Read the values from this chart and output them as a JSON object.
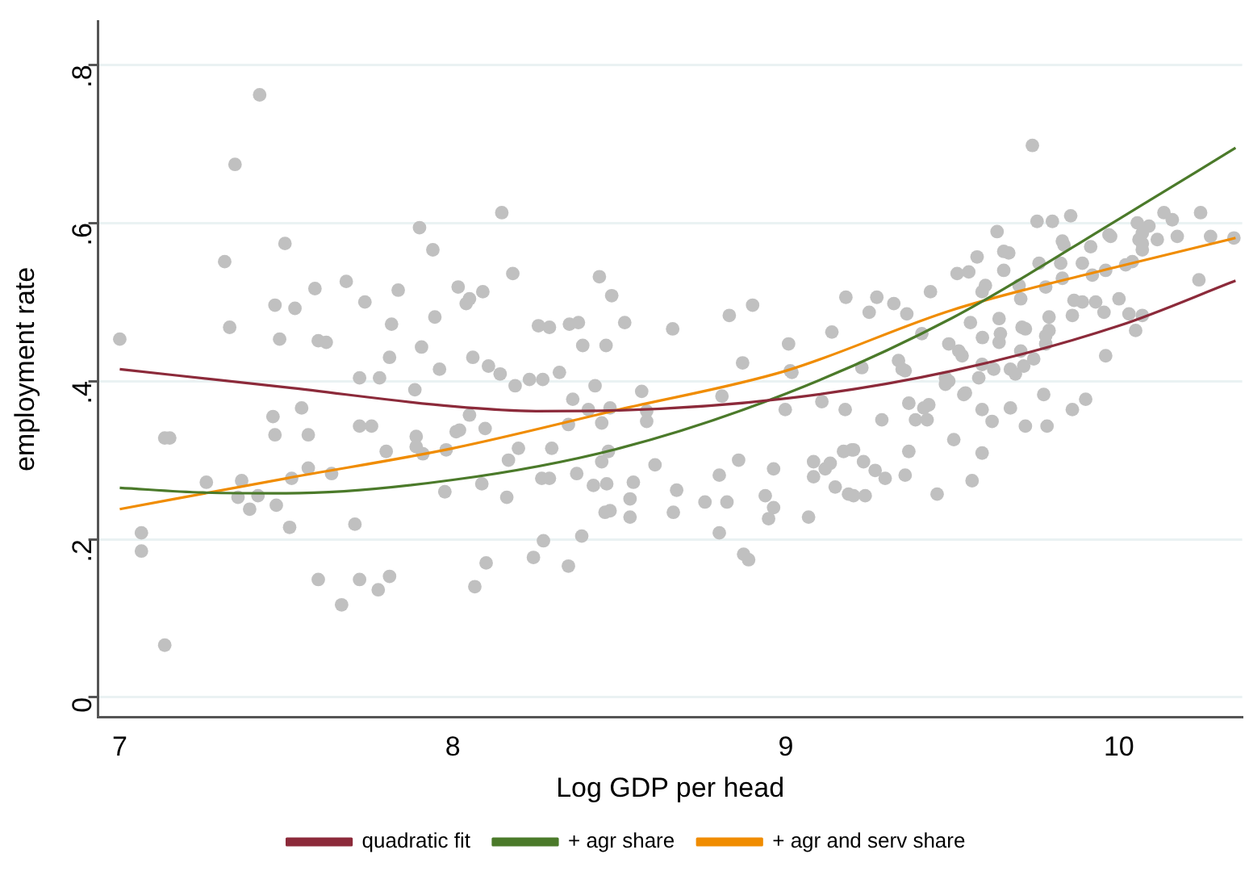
{
  "chart_data": {
    "type": "scatter",
    "xlabel": "Log GDP per head",
    "ylabel": "employment rate",
    "xlim": [
      6.935,
      10.37
    ],
    "ylim": [
      -0.025,
      0.855
    ],
    "xticks": [
      7,
      8,
      9,
      10
    ],
    "yticks": [
      0,
      {
        "value": 0.2,
        "label": ".2"
      },
      {
        "value": 0.4,
        "label": ".4"
      },
      {
        "value": 0.6,
        "label": ".6"
      },
      {
        "value": 0.8,
        "label": ".8"
      }
    ],
    "grid": "y",
    "legend": "bottom",
    "series": [
      {
        "color": "#c0c0c0",
        "marker": "circle",
        "x": [
          7.0,
          7.065,
          7.065,
          7.135,
          7.15,
          7.135,
          7.26,
          7.366,
          7.355,
          7.415,
          7.39,
          7.47,
          7.51,
          7.46,
          7.466,
          7.546,
          7.566,
          7.516,
          7.566,
          7.636,
          7.596,
          7.666,
          7.72,
          7.776,
          7.81,
          7.706,
          7.72,
          7.756,
          7.8,
          7.72,
          7.78,
          7.886,
          7.89,
          7.89,
          7.91,
          7.976,
          7.98,
          8.01,
          8.02,
          8.05,
          8.066,
          8.1,
          7.96,
          8.087,
          7.42,
          7.346,
          7.496,
          7.315,
          7.33,
          7.466,
          7.526,
          7.48,
          7.586,
          7.596,
          7.62,
          7.68,
          7.736,
          7.836,
          7.816,
          7.81,
          7.9,
          7.94,
          7.906,
          7.946,
          8.016,
          8.05,
          8.04,
          8.09,
          8.06,
          8.147,
          8.18,
          8.44,
          8.477,
          8.516,
          8.257,
          8.29,
          8.35,
          8.377,
          8.39,
          8.46,
          8.107,
          8.142,
          8.23,
          8.27,
          8.32,
          8.66,
          8.83,
          8.9,
          8.87,
          9.008,
          9.013,
          9.138,
          9.18,
          9.25,
          9.228,
          8.187,
          8.427,
          8.36,
          8.407,
          8.447,
          8.472,
          8.567,
          8.582,
          8.582,
          8.347,
          8.297,
          8.197,
          8.167,
          8.097,
          8.162,
          8.267,
          8.29,
          8.372,
          8.422,
          8.462,
          8.447,
          8.467,
          8.542,
          8.532,
          8.457,
          8.472,
          8.532,
          8.387,
          8.272,
          8.242,
          8.347,
          8.607,
          8.672,
          8.662,
          8.757,
          8.8,
          8.823,
          8.8,
          8.858,
          8.873,
          8.888,
          8.938,
          8.963,
          8.948,
          8.963,
          8.998,
          9.018,
          9.068,
          9.083,
          9.083,
          9.108,
          9.133,
          9.118,
          9.148,
          9.178,
          9.173,
          9.198,
          9.188,
          9.233,
          9.238,
          8.808,
          9.74,
          9.754,
          9.8,
          9.855,
          9.634,
          9.654,
          9.669,
          9.574,
          9.654,
          9.514,
          9.549,
          9.434,
          9.273,
          9.324,
          9.363,
          9.599,
          9.589,
          9.83,
          9.835,
          9.76,
          9.825,
          9.89,
          9.915,
          9.97,
          9.975,
          9.92,
          9.96,
          10.02,
          10.04,
          10.055,
          10.09,
          10.07,
          10.06,
          10.07,
          10.07,
          10.115,
          10.135,
          10.16,
          10.175,
          10.245,
          10.275,
          10.345,
          10.24,
          9.7,
          9.705,
          9.78,
          9.83,
          9.89,
          9.865,
          9.86,
          9.93,
          9.955,
          10.0,
          10.03,
          10.05,
          10.07,
          9.96,
          9.64,
          9.644,
          9.709,
          9.719,
          9.79,
          9.78,
          9.79,
          9.554,
          9.59,
          9.64,
          9.705,
          9.78,
          9.489,
          9.519,
          9.529,
          9.408,
          9.338,
          9.358,
          9.589,
          9.624,
          9.674,
          9.689,
          9.714,
          9.744,
          9.479,
          9.579,
          9.349,
          9.479,
          9.489,
          9.539,
          9.534,
          9.369,
          9.429,
          9.414,
          9.424,
          9.389,
          9.288,
          9.589,
          9.619,
          9.674,
          9.774,
          9.719,
          9.784,
          9.86,
          9.9,
          9.504,
          9.369,
          9.589,
          9.203,
          9.268,
          9.298,
          9.358,
          9.559,
          9.203,
          9.454
        ],
        "values": [
          0.453,
          0.208,
          0.185,
          0.328,
          0.328,
          0.066,
          0.272,
          0.274,
          0.253,
          0.255,
          0.238,
          0.243,
          0.215,
          0.355,
          0.332,
          0.366,
          0.332,
          0.277,
          0.29,
          0.283,
          0.149,
          0.117,
          0.149,
          0.136,
          0.153,
          0.219,
          0.343,
          0.343,
          0.311,
          0.404,
          0.404,
          0.389,
          0.33,
          0.317,
          0.308,
          0.26,
          0.313,
          0.336,
          0.338,
          0.357,
          0.14,
          0.17,
          0.415,
          0.27,
          0.762,
          0.674,
          0.574,
          0.551,
          0.468,
          0.496,
          0.492,
          0.453,
          0.517,
          0.451,
          0.449,
          0.526,
          0.5,
          0.515,
          0.472,
          0.43,
          0.594,
          0.566,
          0.443,
          0.481,
          0.519,
          0.504,
          0.498,
          0.513,
          0.43,
          0.613,
          0.536,
          0.532,
          0.508,
          0.474,
          0.47,
          0.468,
          0.472,
          0.474,
          0.445,
          0.445,
          0.419,
          0.409,
          0.402,
          0.402,
          0.411,
          0.466,
          0.483,
          0.496,
          0.423,
          0.447,
          0.413,
          0.462,
          0.506,
          0.487,
          0.417,
          0.394,
          0.394,
          0.377,
          0.364,
          0.347,
          0.366,
          0.387,
          0.362,
          0.349,
          0.345,
          0.315,
          0.315,
          0.3,
          0.34,
          0.253,
          0.277,
          0.277,
          0.283,
          0.268,
          0.27,
          0.298,
          0.311,
          0.272,
          0.251,
          0.234,
          0.236,
          0.228,
          0.204,
          0.198,
          0.177,
          0.166,
          0.294,
          0.262,
          0.234,
          0.247,
          0.281,
          0.247,
          0.208,
          0.3,
          0.181,
          0.174,
          0.255,
          0.24,
          0.226,
          0.289,
          0.364,
          0.411,
          0.228,
          0.298,
          0.279,
          0.374,
          0.296,
          0.289,
          0.266,
          0.364,
          0.311,
          0.313,
          0.257,
          0.298,
          0.255,
          0.381,
          0.698,
          0.602,
          0.602,
          0.609,
          0.589,
          0.564,
          0.562,
          0.557,
          0.54,
          0.536,
          0.538,
          0.513,
          0.506,
          0.498,
          0.485,
          0.521,
          0.513,
          0.577,
          0.572,
          0.549,
          0.549,
          0.549,
          0.57,
          0.585,
          0.583,
          0.534,
          0.54,
          0.547,
          0.551,
          0.6,
          0.596,
          0.587,
          0.579,
          0.574,
          0.566,
          0.579,
          0.613,
          0.604,
          0.583,
          0.613,
          0.583,
          0.581,
          0.528,
          0.521,
          0.504,
          0.519,
          0.53,
          0.5,
          0.502,
          0.483,
          0.5,
          0.487,
          0.504,
          0.485,
          0.464,
          0.483,
          0.432,
          0.479,
          0.46,
          0.468,
          0.466,
          0.481,
          0.457,
          0.464,
          0.474,
          0.455,
          0.449,
          0.438,
          0.447,
          0.447,
          0.438,
          0.432,
          0.46,
          0.426,
          0.413,
          0.421,
          0.415,
          0.415,
          0.409,
          0.419,
          0.428,
          0.404,
          0.404,
          0.415,
          0.396,
          0.4,
          0.385,
          0.383,
          0.372,
          0.37,
          0.366,
          0.351,
          0.351,
          0.351,
          0.364,
          0.349,
          0.366,
          0.383,
          0.343,
          0.343,
          0.364,
          0.377,
          0.326,
          0.311,
          0.309,
          0.313,
          0.287,
          0.277,
          0.281,
          0.274,
          0.255,
          0.257
        ]
      },
      {
        "name": "quadratic fit",
        "type": "line",
        "marker": "none",
        "color": "#8c2a3a",
        "x": [
          7,
          7.5,
          8,
          8.25,
          8.5,
          9,
          9.5,
          10,
          10.35
        ],
        "values": [
          0.415,
          0.392,
          0.368,
          0.362,
          0.363,
          0.378,
          0.413,
          0.47,
          0.527
        ]
      },
      {
        "name": "+ agr share",
        "type": "line",
        "marker": "none",
        "color": "#4b7a2a",
        "x": [
          7,
          7.25,
          7.5,
          8,
          8.5,
          9,
          9.5,
          10,
          10.35
        ],
        "values": [
          0.265,
          0.259,
          0.258,
          0.275,
          0.315,
          0.384,
          0.48,
          0.605,
          0.695
        ]
      },
      {
        "name": "+ agr and serv share",
        "type": "line",
        "marker": "none",
        "color": "#f08c00",
        "x": [
          7,
          7.5,
          8,
          8.5,
          9,
          9.5,
          10,
          10.35
        ],
        "values": [
          0.238,
          0.277,
          0.315,
          0.364,
          0.413,
          0.49,
          0.545,
          0.581
        ]
      }
    ]
  }
}
